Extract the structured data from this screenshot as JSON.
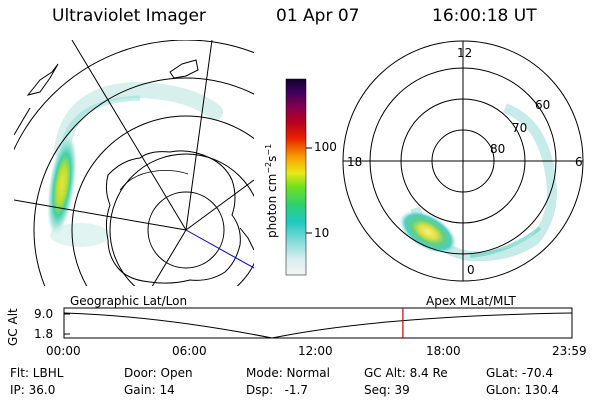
{
  "header": {
    "title": "Ultraviolet Imager",
    "date": "01 Apr 07",
    "time": "16:00:18 UT"
  },
  "colorbar": {
    "label": "photon cm",
    "exp1": "−2",
    "mid": "s",
    "exp2": "−1",
    "ticks": [
      "100",
      "10"
    ]
  },
  "polar": {
    "mlt_labels": [
      "12",
      "18",
      "6",
      "0"
    ],
    "mlat_labels": [
      "60",
      "70",
      "80"
    ]
  },
  "geo_label": "Geographic Lat/Lon",
  "apex_label": "Apex MLat/MLT",
  "altitude_plot": {
    "ylabel": "GC Alt",
    "y_ticks": [
      "9.0",
      "1.8"
    ],
    "x_ticks": [
      "00:00",
      "06:00",
      "12:00",
      "18:00",
      "23:59"
    ],
    "current_marker_time": "16:00"
  },
  "footer": {
    "row1": [
      {
        "key": "flt",
        "text": "Flt: LBHL"
      },
      {
        "key": "door",
        "text": "Door: Open"
      },
      {
        "key": "mode",
        "text": "Mode: Normal"
      },
      {
        "key": "gcalt",
        "text": "GC Alt: 8.4 Re"
      },
      {
        "key": "glat",
        "text": "GLat: -70.4"
      }
    ],
    "row2": [
      {
        "key": "ip",
        "text": "IP: 36.0"
      },
      {
        "key": "gain",
        "text": "Gain: 14"
      },
      {
        "key": "dsp",
        "text": "Dsp:   -1.7"
      },
      {
        "key": "seq",
        "text": "Seq: 39"
      },
      {
        "key": "glon",
        "text": "GLon: 130.4"
      }
    ]
  },
  "colors": {
    "marker": "#cc0000",
    "aurora_low": "#bfe8e6",
    "aurora_mid": "#38c8b8",
    "aurora_high": "#c8e030",
    "aurora_peak": "#f0e040"
  }
}
